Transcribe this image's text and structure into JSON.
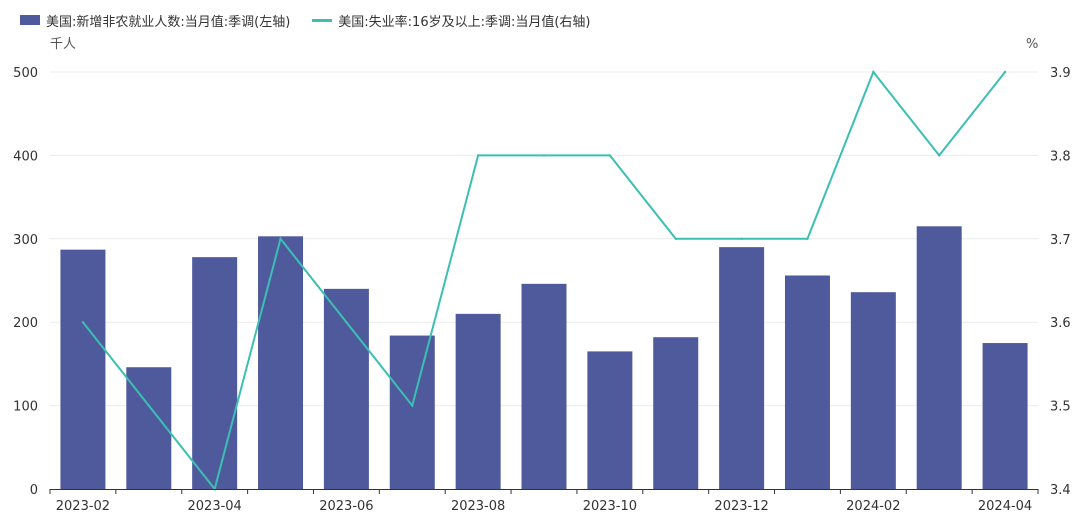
{
  "chart_data": {
    "type": "bar+line",
    "categories": [
      "2023-02",
      "2023-03",
      "2023-04",
      "2023-05",
      "2023-06",
      "2023-07",
      "2023-08",
      "2023-09",
      "2023-10",
      "2023-11",
      "2023-12",
      "2024-01",
      "2024-02",
      "2024-03",
      "2024-04"
    ],
    "x_tick_labels": [
      "2023-02",
      "2023-04",
      "2023-06",
      "2023-08",
      "2023-10",
      "2023-12",
      "2024-02",
      "2024-04"
    ],
    "series": [
      {
        "name": "美国:新增非农就业人数:当月值:季调(左轴)",
        "type": "bar",
        "axis": "left",
        "color": "#4e5a9c",
        "values": [
          287,
          146,
          278,
          303,
          240,
          184,
          210,
          246,
          165,
          182,
          290,
          256,
          236,
          315,
          175
        ]
      },
      {
        "name": "美国:失业率:16岁及以上:季调:当月值(右轴)",
        "type": "line",
        "axis": "right",
        "color": "#3cbfb3",
        "values": [
          3.6,
          3.5,
          3.4,
          3.7,
          3.6,
          3.5,
          3.8,
          3.8,
          3.8,
          3.7,
          3.7,
          3.7,
          3.9,
          3.8,
          3.9
        ]
      }
    ],
    "y_left": {
      "unit": "千人",
      "ylim": [
        0,
        500
      ],
      "ticks": [
        "0",
        "100",
        "200",
        "300",
        "400",
        "500"
      ]
    },
    "y_right": {
      "unit": "%",
      "ylim": [
        3.4,
        3.9
      ],
      "ticks": [
        "3.4",
        "3.5",
        "3.6",
        "3.7",
        "3.8",
        "3.9"
      ]
    },
    "grid": true,
    "legend_position": "top-left"
  }
}
